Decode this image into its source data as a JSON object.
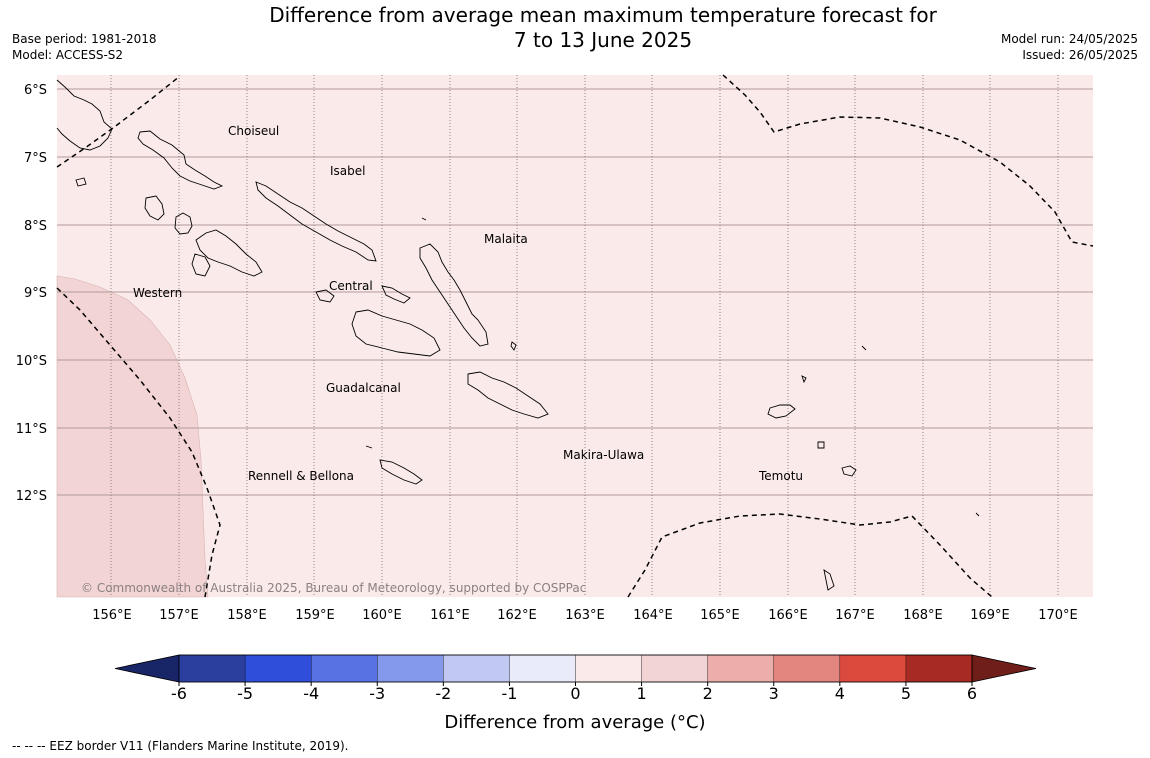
{
  "title_line1": "Difference from average mean maximum temperature forecast for",
  "title_line2": "7 to 13 June 2025",
  "base_period": "Base period: 1981-2018",
  "model": "Model: ACCESS-S2",
  "model_run": "Model run: 24/05/2025",
  "issued": "Issued: 26/05/2025",
  "lat_labels": [
    "6°S",
    "7°S",
    "8°S",
    "9°S",
    "10°S",
    "11°S",
    "12°S"
  ],
  "lon_labels": [
    "156°E",
    "157°E",
    "158°E",
    "159°E",
    "160°E",
    "161°E",
    "162°E",
    "163°E",
    "164°E",
    "165°E",
    "166°E",
    "167°E",
    "168°E",
    "169°E",
    "170°E"
  ],
  "provinces": [
    "Choiseul",
    "Isabel",
    "Malaita",
    "Western",
    "Central",
    "Guadalcanal",
    "Makira-Ulawa",
    "Rennell & Bellona",
    "Temotu"
  ],
  "copyright": "© Commonwealth of Australia 2025, Bureau of Meteorology, supported by COSPPac",
  "colorbar_ticks": [
    "-6",
    "-5",
    "-4",
    "-3",
    "-2",
    "-1",
    "0",
    "1",
    "2",
    "3",
    "4",
    "5",
    "6"
  ],
  "colorbar_colors": [
    "#2a3f9e",
    "#2f4fdb",
    "#5872e4",
    "#8498ec",
    "#c1c9f3",
    "#e9ebfb",
    "#fbeaea",
    "#f3d4d4",
    "#ecaeab",
    "#e48680",
    "#dc4a3e",
    "#a82a24"
  ],
  "colorbar_end_low": "#182566",
  "colorbar_end_high": "#701e1a",
  "colorbar_label": "Difference from average (°C)",
  "field_colors": {
    "anomaly_0_1": "#fbeaea",
    "anomaly_1_2": "#f3d4d4"
  },
  "footnote": "--  --  -- EEZ border V11 (Flanders Marine Institute, 2019)."
}
